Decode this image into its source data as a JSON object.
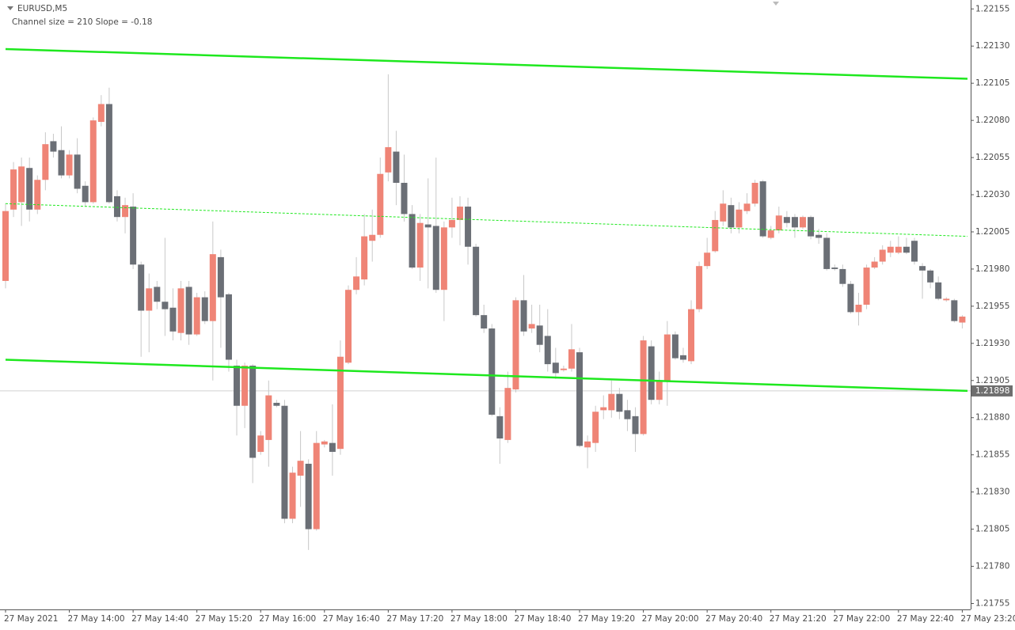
{
  "chart_data": {
    "type": "candlestick",
    "title": "EURUSD,M5",
    "subtitle": "Channel size = 210 Slope = -0.18",
    "categories": [
      "27 May 2021",
      null,
      null,
      null,
      null,
      null,
      null,
      null,
      "27 May 14:00",
      null,
      null,
      null,
      null,
      null,
      null,
      null,
      "27 May 14:40",
      null,
      null,
      null,
      null,
      null,
      null,
      null,
      "27 May 15:20",
      null,
      null,
      null,
      null,
      null,
      null,
      null,
      "27 May 16:00",
      null,
      null,
      null,
      null,
      null,
      null,
      null,
      "27 May 16:40",
      null,
      null,
      null,
      null,
      null,
      null,
      null,
      "27 May 17:20",
      null,
      null,
      null,
      null,
      null,
      null,
      null,
      "27 May 18:00",
      null,
      null,
      null,
      null,
      null,
      null,
      null,
      "27 May 18:40",
      null,
      null,
      null,
      null,
      null,
      null,
      null,
      "27 May 19:20",
      null,
      null,
      null,
      null,
      null,
      null,
      null,
      "27 May 20:00",
      null,
      null,
      null,
      null,
      null,
      null,
      null,
      "27 May 20:40",
      null,
      null,
      null,
      null,
      null,
      null,
      null,
      "27 May 21:20",
      null,
      null,
      null,
      null,
      null,
      null,
      null,
      "27 May 22:00",
      null,
      null,
      null,
      null,
      null,
      null,
      null,
      "27 May 22:40",
      null,
      null,
      null,
      null,
      null,
      null,
      null,
      "27 May 23:20"
    ],
    "open": [
      1.21972,
      1.2202,
      1.22025,
      1.22048,
      1.2202,
      1.2204,
      1.22066,
      1.2206,
      1.22043,
      1.22057,
      1.22036,
      1.22025,
      1.22079,
      1.22091,
      1.22029,
      1.22015,
      1.22022,
      1.21983,
      1.21952,
      1.21968,
      1.21958,
      1.21954,
      1.21937,
      1.21968,
      1.21936,
      1.21961,
      1.21945,
      1.21988,
      1.21963,
      1.21915,
      1.21888,
      1.21915,
      1.21857,
      1.21865,
      1.2189,
      1.21888,
      1.21812,
      1.21841,
      1.21849,
      1.21805,
      1.21862,
      1.21863,
      1.21859,
      1.21917,
      1.21966,
      1.21973,
      1.21999,
      1.22003,
      1.22045,
      1.22059,
      1.22038,
      1.22017,
      1.21981,
      1.2201,
      1.22009,
      1.21966,
      1.22008,
      1.22013,
      1.22022,
      1.21995,
      1.21949,
      1.2194,
      1.21881,
      1.21865,
      1.21899,
      1.21959,
      1.2194,
      1.21942,
      1.21935,
      1.21917,
      1.21912,
      1.21913,
      1.21924,
      1.2186,
      1.21863,
      1.21885,
      1.21885,
      1.21896,
      1.21885,
      1.21881,
      1.21869,
      1.21928,
      1.21892,
      1.21905,
      1.21936,
      1.21922,
      1.21918,
      1.21953,
      1.21982,
      1.21992,
      1.22012,
      1.22023,
      1.22008,
      1.22019,
      1.22024,
      1.22039,
      1.22001,
      1.22006,
      1.22015,
      1.22015,
      1.22008,
      1.22015,
      1.22003,
      1.22001,
      1.21981,
      1.2198,
      1.2197,
      1.21951,
      1.21956,
      1.21981,
      1.21985,
      1.21991,
      1.21991,
      1.21995,
      1.21999,
      1.21982,
      1.21979,
      1.21971,
      1.21959,
      1.21959,
      1.21944
    ],
    "high": [
      1.22024,
      1.22052,
      1.22055,
      1.22055,
      1.22043,
      1.22072,
      1.22071,
      1.22076,
      1.2206,
      1.22068,
      1.22039,
      1.22082,
      1.22097,
      1.22102,
      1.22033,
      1.22028,
      1.22031,
      1.21985,
      1.21977,
      1.21972,
      1.22001,
      1.21967,
      1.21972,
      1.21972,
      1.21964,
      1.21965,
      1.22012,
      1.21993,
      1.21964,
      1.21919,
      1.21917,
      1.21916,
      1.21871,
      1.21905,
      1.21892,
      1.21892,
      1.21847,
      1.21871,
      1.21852,
      1.21871,
      1.21865,
      1.21889,
      1.21932,
      1.21969,
      1.21988,
      1.22017,
      1.2202,
      1.22055,
      1.22111,
      1.22073,
      1.22057,
      1.22023,
      1.22017,
      1.22041,
      1.22055,
      1.22012,
      1.22028,
      1.22029,
      1.22028,
      1.21997,
      1.21956,
      1.21943,
      1.21887,
      1.21911,
      1.21961,
      1.21976,
      1.21956,
      1.21956,
      1.21953,
      1.21927,
      1.21915,
      1.21943,
      1.21927,
      1.21868,
      1.21888,
      1.21895,
      1.21905,
      1.219,
      1.21892,
      1.21887,
      1.21935,
      1.21932,
      1.21911,
      1.21945,
      1.21938,
      1.21927,
      1.21959,
      1.21985,
      1.22001,
      1.22019,
      1.22033,
      1.22028,
      1.22025,
      1.22031,
      1.2204,
      1.2204,
      1.22009,
      1.22022,
      1.22019,
      1.22017,
      1.22016,
      1.22016,
      1.22007,
      1.22004,
      1.21983,
      1.21983,
      1.21972,
      1.21964,
      1.21983,
      1.21988,
      1.21996,
      1.21999,
      1.22002,
      1.22001,
      1.22001,
      1.21984,
      1.2198,
      1.21975,
      1.21961,
      1.2196,
      1.21949
    ],
    "low": [
      1.21967,
      1.22015,
      1.22009,
      1.22012,
      1.22017,
      1.22033,
      1.22055,
      1.22041,
      1.22041,
      1.22031,
      1.22022,
      1.22024,
      1.22076,
      1.22024,
      1.22012,
      1.22004,
      1.2198,
      1.21921,
      1.21924,
      1.21953,
      1.21935,
      1.21932,
      1.21932,
      1.21929,
      1.21935,
      1.21943,
      1.21905,
      1.21927,
      1.21911,
      1.21868,
      1.21873,
      1.21836,
      1.21855,
      1.21847,
      1.21887,
      1.21809,
      1.21809,
      1.2182,
      1.21791,
      1.21804,
      1.2186,
      1.21841,
      1.21855,
      1.21916,
      1.21963,
      1.21969,
      1.21985,
      1.22001,
      1.22039,
      1.22023,
      1.22012,
      1.2198,
      1.21972,
      1.21967,
      1.21964,
      1.21945,
      1.22001,
      1.21996,
      1.21983,
      1.21948,
      1.21937,
      1.21881,
      1.21849,
      1.21863,
      1.21897,
      1.21935,
      1.21937,
      1.21924,
      1.21911,
      1.21906,
      1.21911,
      1.21911,
      1.2186,
      1.21846,
      1.21857,
      1.21879,
      1.2188,
      1.21879,
      1.21871,
      1.21857,
      1.21868,
      1.21889,
      1.21889,
      1.21888,
      1.21919,
      1.21917,
      1.21916,
      1.21951,
      1.2198,
      1.21991,
      1.22009,
      1.22004,
      1.22004,
      1.22017,
      1.22022,
      1.22001,
      1.22,
      1.22004,
      1.22008,
      1.22001,
      1.22007,
      1.22,
      1.21997,
      1.21979,
      1.21979,
      1.21968,
      1.2195,
      1.21942,
      1.21953,
      1.2198,
      1.21983,
      1.21988,
      1.2199,
      1.2199,
      1.21983,
      1.2196,
      1.21967,
      1.21959,
      1.21958,
      1.21944,
      1.2194
    ],
    "close": [
      1.22019,
      1.22047,
      1.22049,
      1.2202,
      1.2204,
      1.22064,
      1.22059,
      1.22043,
      1.22057,
      1.22034,
      1.22025,
      1.2208,
      1.22091,
      1.22025,
      1.22015,
      1.22023,
      1.21983,
      1.21952,
      1.21967,
      1.21958,
      1.21953,
      1.21938,
      1.21967,
      1.21936,
      1.21961,
      1.21945,
      1.2199,
      1.21961,
      1.21919,
      1.21888,
      1.21915,
      1.21853,
      1.21868,
      1.21895,
      1.21888,
      1.21812,
      1.21843,
      1.21851,
      1.21805,
      1.21863,
      1.21864,
      1.21857,
      1.21921,
      1.21966,
      1.21975,
      1.22002,
      1.22003,
      1.22044,
      1.22062,
      1.22038,
      1.22017,
      1.21981,
      1.22011,
      1.22008,
      1.21966,
      1.22008,
      1.22013,
      1.22022,
      1.21995,
      1.21949,
      1.2194,
      1.21882,
      1.21866,
      1.219,
      1.21959,
      1.21938,
      1.21943,
      1.21929,
      1.21916,
      1.2191,
      1.21913,
      1.21926,
      1.21861,
      1.21864,
      1.21884,
      1.21887,
      1.21896,
      1.21884,
      1.21879,
      1.21869,
      1.21932,
      1.21892,
      1.21905,
      1.21936,
      1.2192,
      1.21919,
      1.21953,
      1.21982,
      1.21991,
      1.22013,
      1.22024,
      1.22008,
      1.2202,
      1.22024,
      1.22038,
      1.22002,
      1.22006,
      1.22016,
      1.22011,
      1.22008,
      1.22015,
      1.22002,
      1.22001,
      1.2198,
      1.2198,
      1.2197,
      1.21951,
      1.21956,
      1.21981,
      1.21985,
      1.21993,
      1.21995,
      1.21995,
      1.21991,
      1.21985,
      1.21979,
      1.21971,
      1.2196,
      1.2196,
      1.21945,
      1.21948
    ],
    "up_color": "#ef8476",
    "down_color": "#6b6f76",
    "channel": {
      "upper": [
        1.22128,
        1.22108
      ],
      "middle": [
        1.22024,
        1.22002
      ],
      "lower": [
        1.21919,
        1.21898
      ],
      "color": "#1ee81e"
    },
    "last_price": 1.21898,
    "ylim": [
      1.21751,
      1.22161
    ],
    "yticks": [
      1.22155,
      {
        "value": 1.2213,
        "label": "1.22130"
      },
      1.22105,
      {
        "value": 1.2208,
        "label": "1.22080"
      },
      1.22055,
      {
        "value": 1.2203,
        "label": "1.22030"
      },
      1.22005,
      {
        "value": 1.2198,
        "label": "1.21980"
      },
      1.21955,
      {
        "value": 1.2193,
        "label": "1.21930"
      },
      1.21905,
      {
        "value": 1.2188,
        "label": "1.21880"
      },
      1.21855,
      {
        "value": 1.2183,
        "label": "1.21830"
      },
      1.21805,
      {
        "value": 1.2178,
        "label": "1.21780"
      },
      1.21755
    ]
  }
}
